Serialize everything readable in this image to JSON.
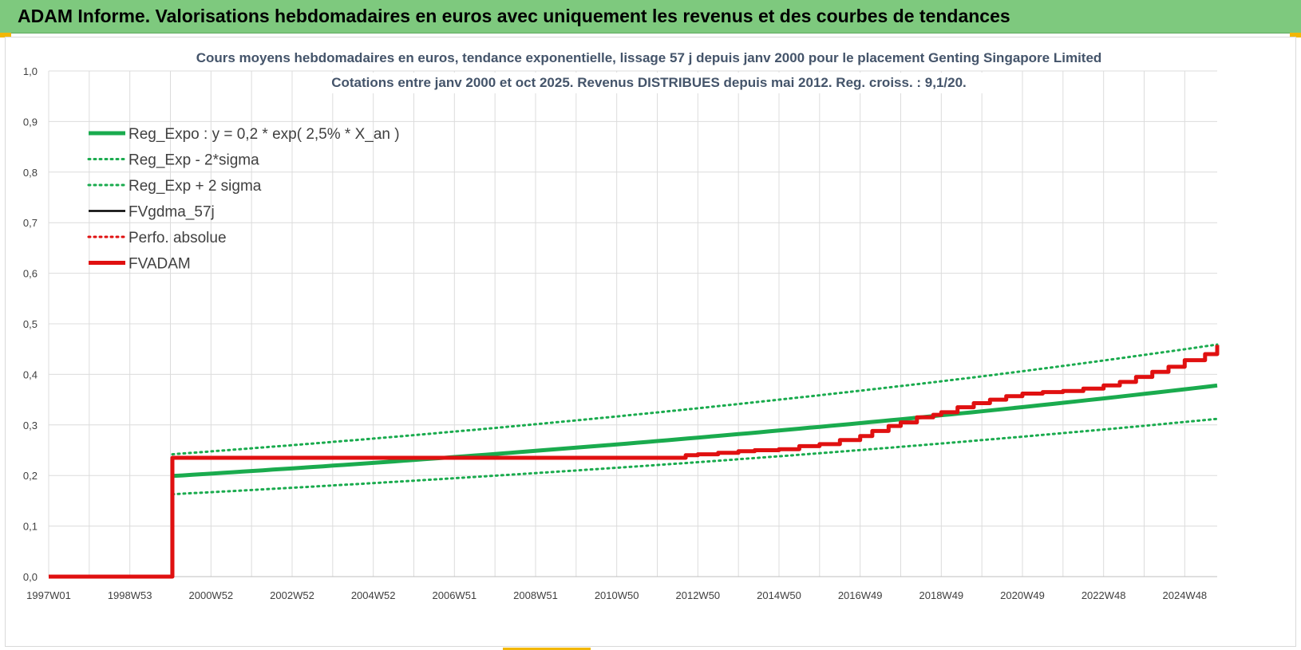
{
  "header": {
    "title": "ADAM Informe. Valorisations hebdomadaires en euros avec uniquement les revenus et des courbes de tendances"
  },
  "colors": {
    "banner": "#7ec97e",
    "reg_expo": "#1aab4e",
    "fvadam": "#e01010",
    "fvgdma": "#000000",
    "grid": "#dcdcdc"
  },
  "chart_data": {
    "type": "line",
    "title_line1": "Cours moyens hebdomadaires en euros, tendance exponentielle, lissage 57 j depuis janv 2000 pour le placement Genting Singapore Limited",
    "title_line2": "Cotations entre janv 2000 et oct 2025. Revenus DISTRIBUES depuis mai 2012. Reg. croiss. : 9,1/20.",
    "ylim": [
      0,
      1.0
    ],
    "y_ticks": [
      "0,0",
      "0,1",
      "0,2",
      "0,3",
      "0,4",
      "0,5",
      "0,6",
      "0,7",
      "0,8",
      "0,9",
      "1,0"
    ],
    "xlim": [
      1997.0,
      2025.8
    ],
    "x_ticks": [
      {
        "x": 1997.0,
        "label": "1997W01"
      },
      {
        "x": 1999.0,
        "label": "1998W53"
      },
      {
        "x": 2001.0,
        "label": "2000W52"
      },
      {
        "x": 2003.0,
        "label": "2002W52"
      },
      {
        "x": 2005.0,
        "label": "2004W52"
      },
      {
        "x": 2007.0,
        "label": "2006W51"
      },
      {
        "x": 2009.0,
        "label": "2008W51"
      },
      {
        "x": 2011.0,
        "label": "2010W50"
      },
      {
        "x": 2013.0,
        "label": "2012W50"
      },
      {
        "x": 2015.0,
        "label": "2014W50"
      },
      {
        "x": 2017.0,
        "label": "2016W49"
      },
      {
        "x": 2019.0,
        "label": "2018W49"
      },
      {
        "x": 2021.0,
        "label": "2020W49"
      },
      {
        "x": 2023.0,
        "label": "2022W48"
      },
      {
        "x": 2025.0,
        "label": "2024W48"
      }
    ],
    "grid": true,
    "legend_position": "top-left",
    "series": [
      {
        "name": "Reg_Expo : y = 0,2 * exp( 2,5% *  X_an )",
        "style": "solid",
        "color": "#1aab4e",
        "x": [
          2000.05,
          2005.0,
          2010.0,
          2015.0,
          2020.0,
          2025.8
        ],
        "y": [
          0.199,
          0.225,
          0.255,
          0.289,
          0.327,
          0.378
        ]
      },
      {
        "name": "Reg_Exp - 2*sigma",
        "style": "dotted",
        "color": "#1aab4e",
        "x": [
          2000.05,
          2005.0,
          2010.0,
          2015.0,
          2020.0,
          2025.8
        ],
        "y": [
          0.163,
          0.185,
          0.21,
          0.238,
          0.27,
          0.312
        ]
      },
      {
        "name": "Reg_Exp + 2 sigma",
        "style": "dotted",
        "color": "#1aab4e",
        "x": [
          2000.05,
          2005.0,
          2010.0,
          2015.0,
          2020.0,
          2025.8
        ],
        "y": [
          0.242,
          0.273,
          0.309,
          0.35,
          0.396,
          0.459
        ]
      },
      {
        "name": "FVgdma_57j",
        "style": "solid-thin",
        "color": "#000000",
        "x": [],
        "y": []
      },
      {
        "name": "Perfo. absolue",
        "style": "dotted",
        "color": "#e01010",
        "x": [],
        "y": []
      },
      {
        "name": "FVADAM",
        "style": "solid-thick",
        "color": "#e01010",
        "x": [
          1997.0,
          2000.05,
          2000.05,
          2012.3,
          2012.7,
          2013.0,
          2013.5,
          2014.0,
          2014.4,
          2015.0,
          2015.5,
          2016.0,
          2016.5,
          2017.0,
          2017.3,
          2017.7,
          2018.0,
          2018.4,
          2018.8,
          2019.0,
          2019.4,
          2019.8,
          2020.2,
          2020.6,
          2021.0,
          2021.5,
          2022.0,
          2022.5,
          2023.0,
          2023.4,
          2023.8,
          2024.2,
          2024.6,
          2025.0,
          2025.5,
          2025.8
        ],
        "y": [
          0.0,
          0.0,
          0.235,
          0.235,
          0.24,
          0.242,
          0.245,
          0.248,
          0.25,
          0.252,
          0.258,
          0.262,
          0.27,
          0.278,
          0.288,
          0.298,
          0.305,
          0.315,
          0.32,
          0.325,
          0.335,
          0.343,
          0.35,
          0.357,
          0.362,
          0.365,
          0.367,
          0.372,
          0.378,
          0.385,
          0.395,
          0.405,
          0.415,
          0.428,
          0.44,
          0.458
        ]
      }
    ]
  }
}
